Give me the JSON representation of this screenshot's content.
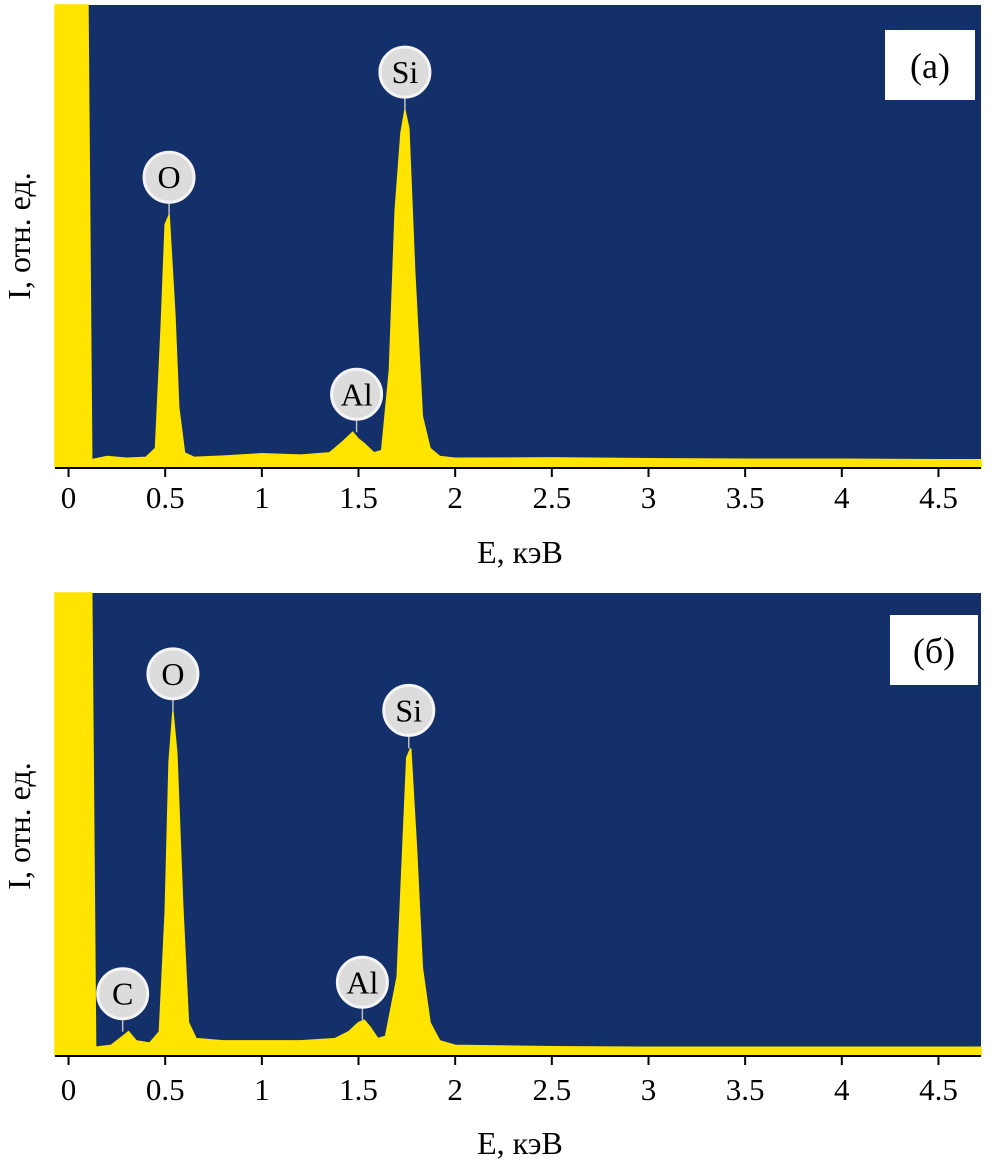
{
  "chart_data": [
    {
      "type": "area",
      "panel_label": "(a)",
      "xlabel": "E, кэВ",
      "ylabel": "I, отн. ед.",
      "xlim": [
        -0.07,
        4.72
      ],
      "ylim": [
        0,
        100
      ],
      "x_ticks": [
        0,
        0.5,
        1,
        1.5,
        2,
        2.5,
        3,
        3.5,
        4,
        4.5
      ],
      "x_tick_labels": [
        "0",
        "0.5",
        "1",
        "1.5",
        "2",
        "2.5",
        "3",
        "3.5",
        "4",
        "4.5"
      ],
      "background_color": "#14306b",
      "series_color": "#ffe400",
      "spectrum": {
        "x": [
          -0.07,
          0.0,
          0.1,
          0.12,
          0.2,
          0.3,
          0.4,
          0.45,
          0.48,
          0.5,
          0.52,
          0.55,
          0.57,
          0.6,
          0.65,
          0.8,
          1.0,
          1.2,
          1.35,
          1.42,
          1.47,
          1.5,
          1.53,
          1.58,
          1.62,
          1.66,
          1.69,
          1.72,
          1.74,
          1.76,
          1.79,
          1.83,
          1.87,
          1.92,
          2.0,
          2.5,
          3.0,
          3.5,
          4.0,
          4.5,
          4.72
        ],
        "y": [
          101,
          101,
          101,
          0.5,
          1.2,
          0.8,
          1.0,
          3,
          30,
          52,
          54,
          32,
          12,
          2,
          1.0,
          1.3,
          1.8,
          1.5,
          2,
          4.5,
          6.5,
          5,
          4,
          2,
          2.5,
          20,
          55,
          72,
          77,
          73,
          42,
          10,
          3,
          1.2,
          0.8,
          0.9,
          0.7,
          0.6,
          0.6,
          0.5,
          0.5
        ]
      },
      "peaks": [
        {
          "element": "O",
          "energy": 0.52,
          "intensity": 54
        },
        {
          "element": "Al",
          "energy": 1.49,
          "intensity": 6.5
        },
        {
          "element": "Si",
          "energy": 1.74,
          "intensity": 77
        }
      ]
    },
    {
      "type": "area",
      "panel_label": "(б)",
      "xlabel": "E, кэВ",
      "ylabel": "I, отн. ед.",
      "xlim": [
        -0.07,
        4.72
      ],
      "ylim": [
        0,
        100
      ],
      "x_ticks": [
        0,
        0.5,
        1,
        1.5,
        2,
        2.5,
        3,
        3.5,
        4,
        4.5
      ],
      "x_tick_labels": [
        "0",
        "0.5",
        "1",
        "1.5",
        "2",
        "2.5",
        "3",
        "3.5",
        "4",
        "4.5"
      ],
      "background_color": "#14306b",
      "series_color": "#ffe400",
      "spectrum": {
        "x": [
          -0.07,
          0.0,
          0.12,
          0.14,
          0.22,
          0.28,
          0.31,
          0.35,
          0.42,
          0.47,
          0.5,
          0.52,
          0.54,
          0.56,
          0.59,
          0.62,
          0.66,
          0.8,
          1.0,
          1.2,
          1.38,
          1.45,
          1.5,
          1.53,
          1.56,
          1.6,
          1.64,
          1.7,
          1.72,
          1.75,
          1.77,
          1.8,
          1.83,
          1.87,
          1.92,
          2.0,
          2.5,
          3.0,
          3.5,
          4.0,
          4.5,
          4.72
        ],
        "y": [
          101,
          101,
          101,
          0.6,
          1.0,
          3.0,
          4.0,
          2.0,
          1.5,
          4,
          30,
          63,
          74,
          65,
          32,
          6,
          2.5,
          2,
          2.0,
          2.0,
          2.5,
          4,
          6,
          6.5,
          5,
          2.5,
          3,
          16,
          35,
          64,
          66,
          44,
          18,
          6,
          2,
          1.0,
          0.7,
          0.6,
          0.6,
          0.6,
          0.6,
          0.6
        ]
      },
      "peaks": [
        {
          "element": "C",
          "energy": 0.28,
          "intensity": 4
        },
        {
          "element": "O",
          "energy": 0.54,
          "intensity": 74
        },
        {
          "element": "Al",
          "energy": 1.52,
          "intensity": 6.5
        },
        {
          "element": "Si",
          "energy": 1.76,
          "intensity": 66
        }
      ]
    }
  ]
}
